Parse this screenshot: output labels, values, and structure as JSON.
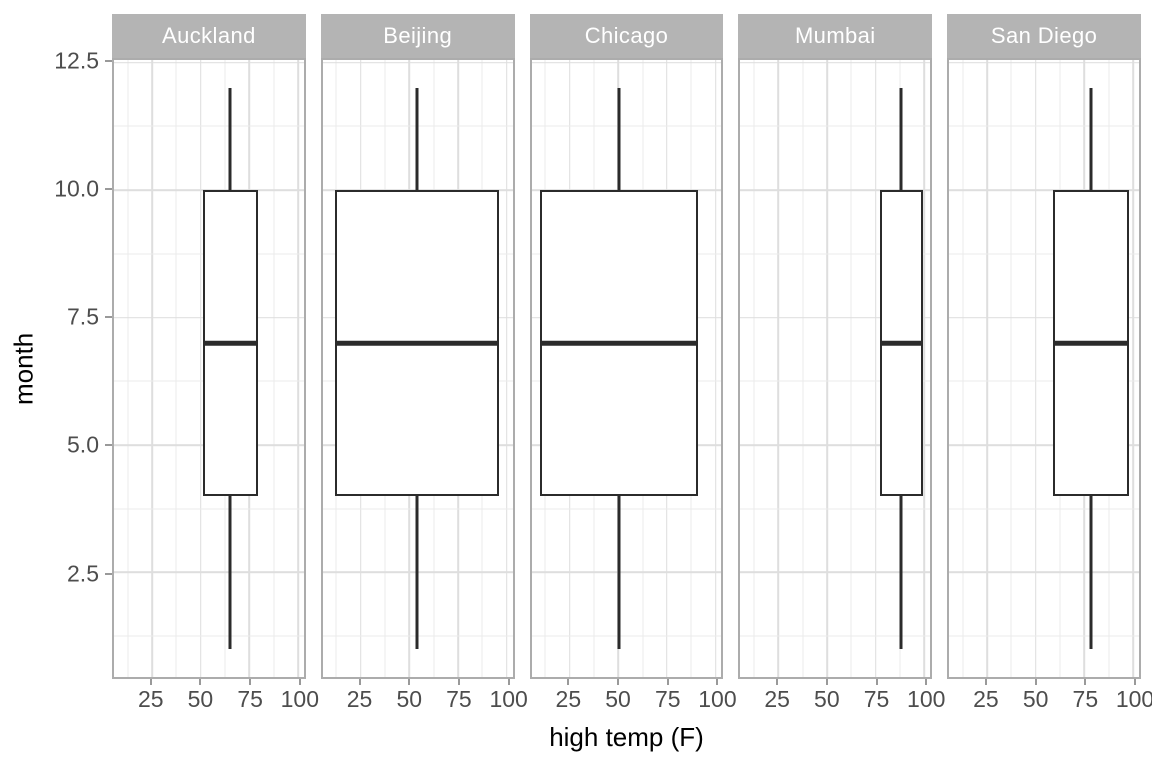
{
  "colors": {
    "strip_bg": "#B4B4B4",
    "strip_text": "#FFFFFF",
    "panel_border": "#ACACAC",
    "grid_major": "#DEDEDE",
    "grid_minor": "#EBEBEB",
    "box_stroke": "#2B2B2B",
    "axis_text": "#4D4D4D",
    "axis_title": "#000000",
    "tick_mark": "#999999"
  },
  "chart_data": {
    "type": "boxplot",
    "title": "",
    "xlabel": "high temp (F)",
    "ylabel": "month",
    "facet_variable": "city",
    "legend": "none",
    "grid": "on",
    "x_axis": {
      "domain": [
        5.5,
        103
      ],
      "ticks": [
        25,
        50,
        75,
        100
      ],
      "tick_labels": [
        "25",
        "50",
        "75",
        "100"
      ],
      "minor_gridlines": [
        12.5,
        37.5,
        62.5,
        87.5
      ]
    },
    "y_axis": {
      "domain": [
        0.45,
        12.55
      ],
      "ticks": [
        2.5,
        5,
        7.5,
        10,
        12.5
      ],
      "tick_labels": [
        "2.5",
        "5.0",
        "7.5",
        "10.0",
        "12.5"
      ],
      "minor_gridlines": [
        1.25,
        3.75,
        6.25,
        8.75,
        11.25
      ]
    },
    "month_stats": {
      "whisker_low": 1,
      "q1": 4,
      "median": 7,
      "q3": 10,
      "whisker_high": 12
    },
    "facets": [
      {
        "label": "Auckland",
        "temp_box_min": 51,
        "temp_box_max": 79.5,
        "temp_center": 65.25
      },
      {
        "label": "Beijing",
        "temp_box_min": 12,
        "temp_box_max": 96,
        "temp_center": 54
      },
      {
        "label": "Chicago",
        "temp_box_min": 10,
        "temp_box_max": 91,
        "temp_center": 50.5
      },
      {
        "label": "Mumbai",
        "temp_box_min": 77,
        "temp_box_max": 99.5,
        "temp_center": 88.25
      },
      {
        "label": "San Diego",
        "temp_box_min": 59,
        "temp_box_max": 98,
        "temp_center": 78.5
      }
    ]
  }
}
